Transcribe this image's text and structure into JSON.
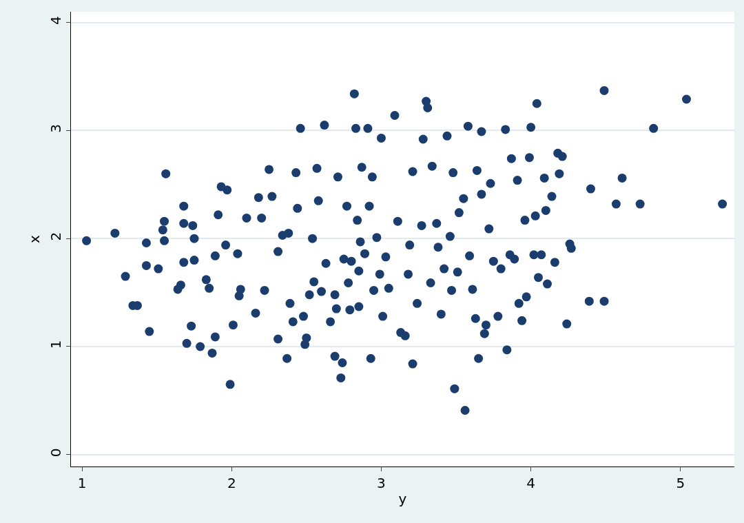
{
  "chart_data": {
    "type": "scatter",
    "xlabel": "y",
    "ylabel": "x",
    "xlim": [
      0.926,
      5.36
    ],
    "ylim": [
      -0.11,
      4.1
    ],
    "xticks": [
      1,
      2,
      3,
      4,
      5
    ],
    "yticks": [
      0,
      1,
      2,
      3,
      4
    ],
    "grid": "y",
    "marker": "circle",
    "series": [
      {
        "color": "#1a3d6e",
        "x": [
          1.03,
          1.22,
          1.29,
          1.34,
          1.37,
          1.43,
          1.43,
          1.45,
          1.51,
          1.54,
          1.55,
          1.56,
          1.55,
          1.64,
          1.66,
          1.68,
          1.68,
          1.68,
          1.7,
          1.73,
          1.74,
          1.75,
          1.75,
          1.79,
          1.83,
          1.85,
          1.87,
          1.89,
          1.89,
          1.91,
          1.93,
          1.97,
          1.96,
          1.99,
          2.01,
          2.04,
          2.05,
          2.06,
          2.1,
          2.16,
          2.18,
          2.2,
          2.22,
          2.25,
          2.27,
          2.31,
          2.31,
          2.34,
          2.37,
          2.38,
          2.39,
          2.41,
          2.43,
          2.44,
          2.46,
          2.48,
          2.49,
          2.5,
          2.52,
          2.54,
          2.55,
          2.57,
          2.58,
          2.6,
          2.62,
          2.63,
          2.66,
          2.69,
          2.69,
          2.7,
          2.71,
          2.73,
          2.74,
          2.75,
          2.77,
          2.78,
          2.79,
          2.8,
          2.82,
          2.83,
          2.84,
          2.85,
          2.85,
          2.86,
          2.87,
          2.89,
          2.91,
          2.92,
          2.93,
          2.94,
          2.95,
          2.97,
          2.99,
          3.0,
          3.01,
          3.03,
          3.05,
          3.09,
          3.11,
          3.13,
          3.16,
          3.18,
          3.19,
          3.21,
          3.21,
          3.24,
          3.27,
          3.28,
          3.3,
          3.31,
          3.33,
          3.34,
          3.37,
          3.38,
          3.4,
          3.42,
          3.44,
          3.46,
          3.47,
          3.48,
          3.49,
          3.51,
          3.52,
          3.55,
          3.56,
          3.58,
          3.59,
          3.61,
          3.63,
          3.64,
          3.65,
          3.67,
          3.67,
          3.69,
          3.7,
          3.72,
          3.73,
          3.75,
          3.78,
          3.8,
          3.83,
          3.84,
          3.86,
          3.87,
          3.89,
          3.91,
          3.92,
          3.94,
          3.96,
          3.97,
          3.99,
          4.0,
          4.02,
          4.03,
          4.04,
          4.05,
          4.07,
          4.09,
          4.1,
          4.11,
          4.14,
          4.16,
          4.18,
          4.19,
          4.21,
          4.24,
          4.26,
          4.27,
          4.39,
          4.4,
          4.49,
          4.57,
          4.61,
          4.73,
          4.82,
          5.04,
          5.28,
          4.49
        ],
        "values": [
          1.98,
          2.05,
          1.65,
          1.38,
          1.38,
          1.96,
          1.75,
          1.14,
          1.72,
          2.08,
          1.98,
          2.6,
          2.16,
          1.53,
          1.57,
          2.3,
          1.78,
          2.14,
          1.03,
          1.19,
          2.12,
          2.0,
          1.8,
          1.0,
          1.62,
          1.54,
          0.94,
          1.09,
          1.84,
          2.22,
          2.48,
          2.45,
          1.94,
          0.65,
          1.2,
          1.86,
          1.47,
          1.53,
          2.19,
          1.31,
          2.38,
          2.19,
          1.52,
          2.64,
          2.39,
          1.07,
          1.88,
          2.03,
          0.89,
          2.05,
          1.4,
          1.23,
          2.61,
          2.28,
          3.02,
          1.28,
          1.02,
          1.08,
          1.48,
          2.0,
          1.6,
          2.65,
          2.35,
          1.51,
          3.05,
          1.77,
          1.23,
          1.48,
          0.91,
          1.35,
          2.57,
          0.71,
          0.85,
          1.81,
          2.3,
          1.59,
          1.34,
          1.79,
          3.34,
          3.02,
          2.17,
          1.37,
          1.7,
          1.97,
          2.66,
          1.86,
          3.02,
          2.3,
          0.89,
          2.57,
          1.52,
          2.01,
          1.67,
          2.93,
          1.28,
          1.83,
          1.54,
          3.14,
          2.16,
          1.13,
          1.1,
          1.67,
          1.94,
          0.84,
          2.62,
          1.4,
          2.12,
          2.92,
          3.27,
          3.21,
          1.59,
          2.67,
          2.14,
          1.92,
          1.3,
          1.72,
          2.95,
          2.02,
          1.52,
          2.61,
          0.61,
          1.69,
          2.24,
          2.37,
          0.41,
          3.04,
          1.84,
          1.53,
          1.26,
          2.63,
          0.89,
          2.99,
          2.41,
          1.12,
          1.2,
          2.09,
          2.51,
          1.79,
          1.28,
          1.72,
          3.01,
          0.97,
          1.85,
          2.74,
          1.81,
          2.54,
          1.4,
          1.24,
          2.17,
          1.46,
          2.75,
          3.03,
          1.85,
          2.21,
          3.25,
          1.64,
          1.85,
          2.56,
          2.26,
          1.58,
          2.39,
          1.78,
          2.79,
          2.6,
          2.76,
          1.21,
          1.95,
          1.91,
          1.42,
          2.46,
          3.37,
          2.32,
          2.56,
          2.32,
          3.02,
          3.29,
          2.32,
          1.42
        ]
      }
    ]
  }
}
